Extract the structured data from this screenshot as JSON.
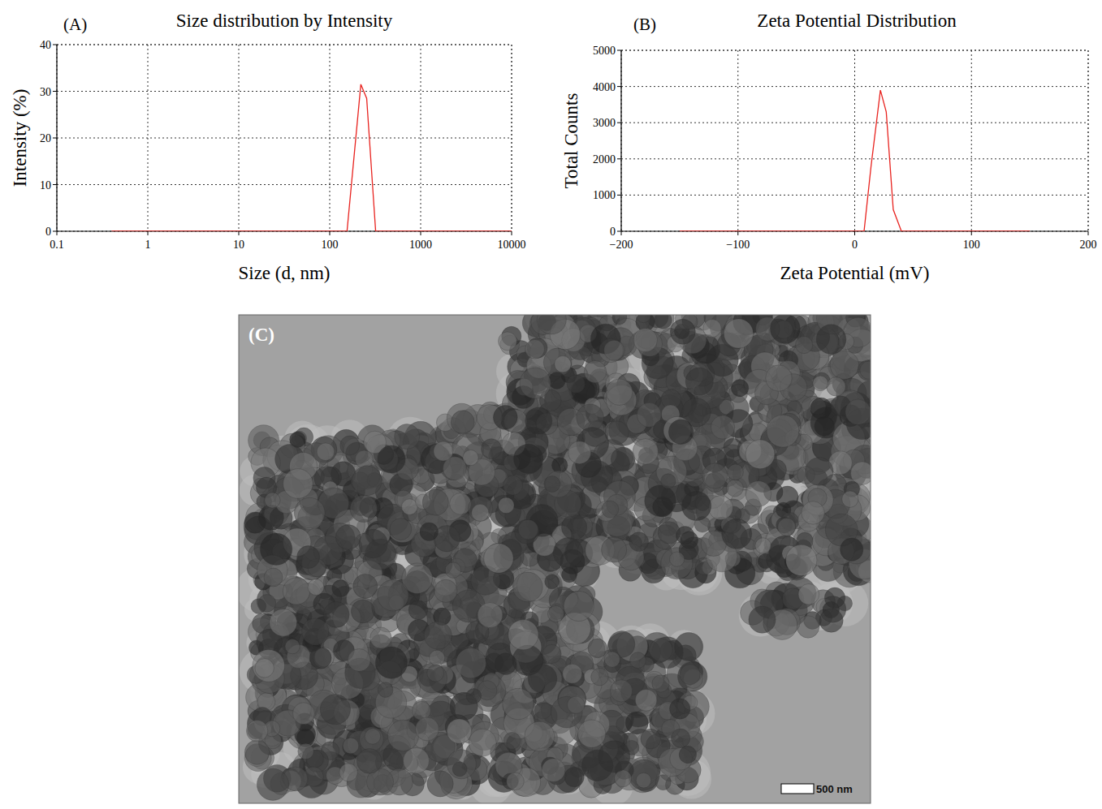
{
  "chart_data": [
    {
      "type": "line",
      "label": "(A)",
      "title": "Size distribution by Intensity",
      "x_label": "Size (d, nm)",
      "y_label": "Intensity (%)",
      "log": "x",
      "grid": true,
      "color": "#e8231f",
      "x": [
        0.4,
        1,
        10,
        100,
        155,
        220,
        255,
        320,
        1000,
        10000
      ],
      "values": [
        0,
        0,
        0,
        0,
        0,
        31.5,
        28.5,
        0,
        0,
        0
      ],
      "xlim": [
        0.1,
        10000
      ],
      "xticks": [
        0.1,
        1,
        10,
        100,
        1000,
        10000
      ],
      "ylim": [
        0,
        40
      ],
      "yticks": [
        0,
        10,
        20,
        30,
        40
      ]
    },
    {
      "type": "line",
      "label": "(B)",
      "title": "Zeta Potential Distribution",
      "x_label": "Zeta Potential (mV)",
      "y_label": "Total Counts",
      "grid": true,
      "color": "#e8231f",
      "x": [
        -150,
        0,
        8,
        14,
        22,
        27,
        33,
        40,
        150
      ],
      "values": [
        0,
        0,
        0,
        1800,
        3900,
        3300,
        600,
        0,
        0
      ],
      "xlim": [
        -200,
        200
      ],
      "xticks": [
        {
          "value": -200,
          "label": "−200"
        },
        {
          "value": -100,
          "label": "−100"
        },
        0,
        100,
        200
      ],
      "ylim": [
        0,
        5000
      ],
      "yticks": [
        0,
        1000,
        2000,
        3000,
        4000,
        5000
      ]
    }
  ],
  "image": {
    "label": "(C)",
    "scale_bar": "500 nm"
  }
}
